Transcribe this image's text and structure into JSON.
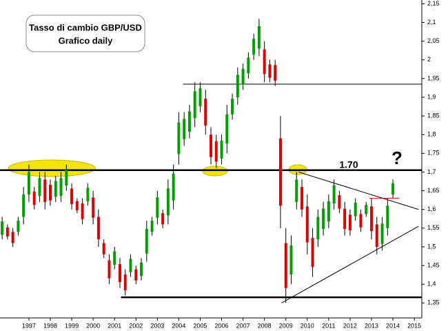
{
  "chart_data": {
    "type": "range-bar",
    "title": "Tasso di cambio GBP/USD",
    "subtitle": "Grafico daily",
    "annotations": [
      "1.70",
      "?"
    ],
    "x": [
      1995.75,
      1996,
      1996.25,
      1996.5,
      1996.75,
      1997,
      1997.25,
      1997.5,
      1997.75,
      1998,
      1998.25,
      1998.5,
      1998.75,
      1999,
      1999.25,
      1999.5,
      1999.75,
      2000,
      2000.25,
      2000.5,
      2000.75,
      2001,
      2001.25,
      2001.5,
      2001.75,
      2002,
      2002.25,
      2002.5,
      2002.75,
      2003,
      2003.25,
      2003.5,
      2003.75,
      2004,
      2004.25,
      2004.5,
      2004.75,
      2005,
      2005.25,
      2005.5,
      2005.75,
      2006,
      2006.25,
      2006.5,
      2006.75,
      2007,
      2007.25,
      2007.5,
      2007.75,
      2008,
      2008.25,
      2008.5,
      2008.75,
      2009,
      2009.25,
      2009.5,
      2009.75,
      2010,
      2010.25,
      2010.5,
      2010.75,
      2011,
      2011.25,
      2011.5,
      2011.75,
      2012,
      2012.25,
      2012.5,
      2012.75,
      2013,
      2013.25,
      2013.5,
      2013.75,
      2014
    ],
    "high": [
      1.58,
      1.56,
      1.55,
      1.58,
      1.66,
      1.72,
      1.66,
      1.7,
      1.7,
      1.68,
      1.69,
      1.7,
      1.72,
      1.67,
      1.63,
      1.63,
      1.67,
      1.65,
      1.6,
      1.52,
      1.48,
      1.5,
      1.47,
      1.44,
      1.48,
      1.45,
      1.47,
      1.57,
      1.58,
      1.65,
      1.6,
      1.68,
      1.72,
      1.86,
      1.86,
      1.88,
      1.94,
      1.94,
      1.92,
      1.82,
      1.8,
      1.8,
      1.88,
      1.91,
      1.98,
      1.99,
      2.02,
      2.07,
      2.11,
      2.05,
      2.0,
      2.0,
      1.85,
      1.55,
      1.53,
      1.7,
      1.68,
      1.64,
      1.55,
      1.6,
      1.62,
      1.64,
      1.68,
      1.65,
      1.62,
      1.6,
      1.63,
      1.6,
      1.62,
      1.63,
      1.58,
      1.58,
      1.63,
      1.68
    ],
    "low": [
      1.52,
      1.52,
      1.5,
      1.53,
      1.56,
      1.62,
      1.6,
      1.62,
      1.6,
      1.61,
      1.62,
      1.62,
      1.65,
      1.6,
      1.59,
      1.56,
      1.61,
      1.56,
      1.5,
      1.47,
      1.4,
      1.44,
      1.39,
      1.37,
      1.42,
      1.4,
      1.41,
      1.46,
      1.53,
      1.56,
      1.55,
      1.56,
      1.6,
      1.72,
      1.77,
      1.79,
      1.82,
      1.86,
      1.8,
      1.72,
      1.71,
      1.72,
      1.75,
      1.84,
      1.88,
      1.92,
      1.95,
      2.0,
      2.01,
      1.94,
      1.94,
      1.93,
      1.55,
      1.35,
      1.4,
      1.6,
      1.58,
      1.48,
      1.42,
      1.5,
      1.53,
      1.55,
      1.6,
      1.59,
      1.53,
      1.53,
      1.57,
      1.54,
      1.58,
      1.52,
      1.48,
      1.49,
      1.53,
      1.63
    ],
    "up_color": "#00a000",
    "down_color": "#e00000",
    "xlim": [
      1995.65,
      2015.35
    ],
    "ylim": [
      1.31,
      2.16
    ],
    "xticks": [
      1997,
      1998,
      1999,
      2000,
      2001,
      2002,
      2003,
      2004,
      2005,
      2006,
      2007,
      2008,
      2009,
      2010,
      2011,
      2012,
      2013,
      2014,
      2015
    ],
    "yticks": [
      {
        "value": 1.35,
        "label": "1,35"
      },
      {
        "value": 1.4,
        "label": "1,4"
      },
      {
        "value": 1.45,
        "label": "1,45"
      },
      {
        "value": 1.5,
        "label": "1,5"
      },
      {
        "value": 1.55,
        "label": "1,55"
      },
      {
        "value": 1.6,
        "label": "1,6"
      },
      {
        "value": 1.65,
        "label": "1,65"
      },
      {
        "value": 1.7,
        "label": "1,7"
      },
      {
        "value": 1.75,
        "label": "1,75"
      },
      {
        "value": 1.8,
        "label": "1,8"
      },
      {
        "value": 1.85,
        "label": "1,85"
      },
      {
        "value": 1.9,
        "label": "1,9"
      },
      {
        "value": 1.95,
        "label": "1,95"
      },
      {
        "value": 2,
        "label": "2"
      },
      {
        "value": 2.05,
        "label": "2,05"
      },
      {
        "value": 2.1,
        "label": "2,1"
      },
      {
        "value": 2.15,
        "label": "2,15"
      }
    ],
    "levels": [
      {
        "value": 1.935,
        "from": 2004.2,
        "color": "#000000"
      },
      {
        "value": 1.705,
        "from": 1995.65,
        "color": "#000000"
      },
      {
        "value": 1.365,
        "from": 2001.3,
        "color": "#000000"
      },
      {
        "value": 1.63,
        "from": 2012.9,
        "to": 2014.3,
        "color": "#e00000"
      }
    ],
    "trendlines": [
      {
        "x": [
          2009.6,
          2015.2
        ],
        "y": [
          1.7,
          1.6
        ]
      },
      {
        "x": [
          2008.8,
          2015.2
        ],
        "y": [
          1.35,
          1.555
        ]
      }
    ]
  }
}
